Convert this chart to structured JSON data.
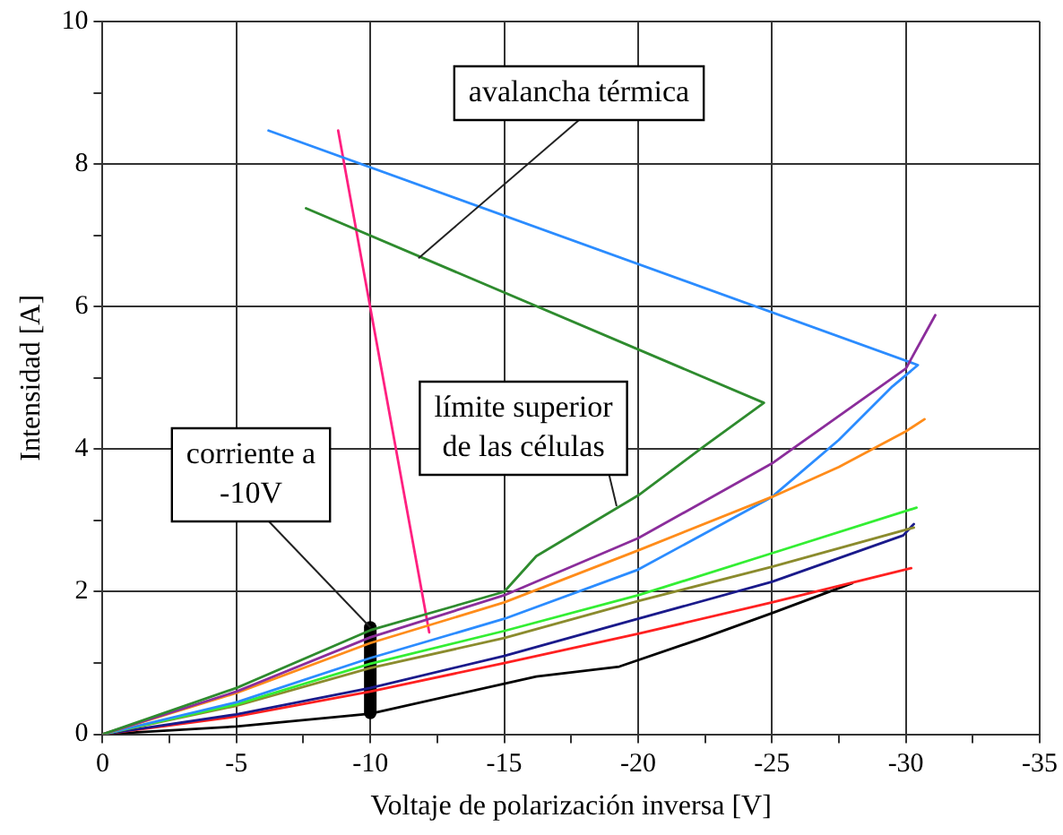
{
  "chart_data": {
    "type": "line",
    "xlabel": "Voltaje de polarización inversa [V]",
    "ylabel": "Intensidad [A]",
    "xlim": [
      0,
      -35
    ],
    "xticks": [
      0,
      {
        "value": -2.5,
        "label": null
      },
      -5,
      {
        "value": -7.5,
        "label": null
      },
      -10,
      {
        "value": -12.5,
        "label": null
      },
      -15,
      {
        "value": -17.5,
        "label": null
      },
      -20,
      {
        "value": -22.5,
        "label": null
      },
      -25,
      {
        "value": -27.5,
        "label": null
      },
      -30,
      {
        "value": -32.5,
        "label": null
      },
      -35
    ],
    "ylim": [
      0,
      10
    ],
    "yticks": [
      0,
      {
        "value": 1,
        "label": null
      },
      2,
      {
        "value": 3,
        "label": null
      },
      4,
      {
        "value": 5,
        "label": null
      },
      6,
      {
        "value": 7,
        "label": null
      },
      8,
      {
        "value": 9,
        "label": null
      },
      10
    ],
    "grid": true,
    "legend": false,
    "marker": "none",
    "line_style": "solid",
    "series": [
      {
        "color": "#2e8b2e",
        "x": [
          0,
          -5,
          -10,
          -15,
          -16.2,
          -20,
          -22.5,
          -24.7,
          -7.6
        ],
        "values": [
          0,
          0.65,
          1.46,
          2.0,
          2.5,
          3.35,
          4.05,
          4.65,
          7.38
        ]
      },
      {
        "color": "#8b2d9b",
        "x": [
          0,
          -5,
          -10,
          -15,
          -20,
          -25,
          -30,
          -31.1
        ],
        "values": [
          0,
          0.6,
          1.36,
          1.95,
          2.75,
          3.8,
          5.13,
          5.88
        ]
      },
      {
        "color": "#ff8c1a",
        "x": [
          0,
          -5,
          -10,
          -15,
          -20,
          -25,
          -27.5,
          -30,
          -30.7
        ],
        "values": [
          0,
          0.58,
          1.28,
          1.85,
          2.58,
          3.33,
          3.75,
          4.25,
          4.42
        ]
      },
      {
        "color": "#2b8cff",
        "x": [
          0,
          -5,
          -10,
          -15,
          -20,
          -25,
          -27.5,
          -29.5,
          -30.45,
          -6.2
        ],
        "values": [
          0,
          0.45,
          1.07,
          1.62,
          2.31,
          3.33,
          4.13,
          4.88,
          5.18,
          8.47
        ]
      },
      {
        "color": "#33ee33",
        "x": [
          0,
          -5,
          -10,
          -15,
          -20,
          -25,
          -30.4
        ],
        "values": [
          0,
          0.42,
          0.99,
          1.45,
          1.95,
          2.54,
          3.18
        ]
      },
      {
        "color": "#8b8b2d",
        "x": [
          0,
          -5,
          -10,
          -15,
          -20,
          -25,
          -30.3
        ],
        "values": [
          0,
          0.4,
          0.93,
          1.35,
          1.87,
          2.35,
          2.9
        ]
      },
      {
        "color": "#1a1a8b",
        "x": [
          0,
          -5,
          -10,
          -15,
          -20,
          -25,
          -29.9,
          -30.3
        ],
        "values": [
          0,
          0.28,
          0.65,
          1.1,
          1.62,
          2.14,
          2.79,
          2.95
        ]
      },
      {
        "color": "#ff2020",
        "x": [
          0,
          -5,
          -10,
          -15,
          -20,
          -25,
          -30.2
        ],
        "values": [
          0,
          0.25,
          0.6,
          1.0,
          1.41,
          1.85,
          2.33
        ]
      },
      {
        "color": "#000000",
        "x": [
          0,
          -5,
          -10,
          -16.2,
          -19.3,
          -22.5,
          -25,
          -28
        ],
        "values": [
          0,
          0.11,
          0.29,
          0.81,
          0.95,
          1.36,
          1.7,
          2.12
        ]
      },
      {
        "color": "#ff2080",
        "x": [
          -8.8,
          -12.2
        ],
        "values": [
          8.47,
          1.43
        ]
      },
      {
        "color": "#000000",
        "x": [
          -10,
          -10
        ],
        "values": [
          0.3,
          1.5
        ]
      }
    ],
    "annotations": [
      {
        "text": "avalancha térmica",
        "x": -11.8,
        "y": 6.68
      },
      {
        "text": "límite superior\nde las células",
        "x": -19.2,
        "y": 3.2
      },
      {
        "text": "corriente a\n-10V",
        "x": -10,
        "y": 1.5
      }
    ]
  }
}
